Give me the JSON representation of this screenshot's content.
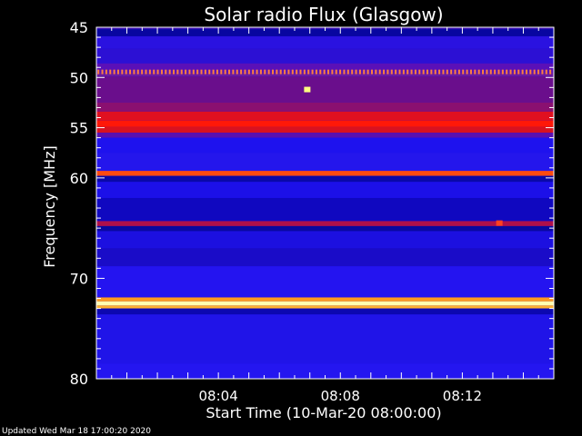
{
  "chart_data": {
    "type": "heatmap",
    "title": "Solar radio Flux (Glasgow)",
    "xlabel": "Start Time (10-Mar-20 08:00:00)",
    "ylabel": "Frequency [MHz]",
    "footer": "Updated Wed Mar 18 17:00:20 2020",
    "x_unit": "minutes after 08:00:00",
    "xlim": [
      0,
      15
    ],
    "ylim": [
      45,
      80
    ],
    "y_reversed": true,
    "x_ticks": [
      {
        "value": 4,
        "label": "08:04"
      },
      {
        "value": 8,
        "label": "08:08"
      },
      {
        "value": 12,
        "label": "08:12"
      }
    ],
    "x_minor_step": 0.5,
    "y_ticks": [
      {
        "value": 45,
        "label": "45"
      },
      {
        "value": 50,
        "label": "50"
      },
      {
        "value": 55,
        "label": "55"
      },
      {
        "value": 60,
        "label": "60"
      },
      {
        "value": 70,
        "label": "70"
      },
      {
        "value": 80,
        "label": "80"
      }
    ],
    "y_minor_step": 1,
    "background_color": "#1c10e8",
    "bands": [
      {
        "f_start": 45,
        "f_end": 45.2,
        "color": "#3a10b0"
      },
      {
        "f_start": 45.2,
        "f_end": 45.9,
        "color": "#0806a0"
      },
      {
        "f_start": 45.9,
        "f_end": 47.1,
        "color": "#2a12e0"
      },
      {
        "f_start": 47.1,
        "f_end": 48.6,
        "color": "#2c10d4"
      },
      {
        "f_start": 48.6,
        "f_end": 49.5,
        "color": "#5a10b8"
      },
      {
        "f_start": 49.5,
        "f_end": 49.9,
        "color": "#6a1aa0"
      },
      {
        "f_start": 49.9,
        "f_end": 52.5,
        "color": "#6a0e8c"
      },
      {
        "f_start": 52.5,
        "f_end": 53.4,
        "color": "#8a1070"
      },
      {
        "f_start": 53.4,
        "f_end": 54.3,
        "color": "#e01020"
      },
      {
        "f_start": 54.3,
        "f_end": 54.9,
        "color": "#ff1808"
      },
      {
        "f_start": 54.9,
        "f_end": 55.5,
        "color": "#d81220"
      },
      {
        "f_start": 55.5,
        "f_end": 56.0,
        "color": "#5a10b0"
      },
      {
        "f_start": 56.0,
        "f_end": 57.5,
        "color": "#1e12ee"
      },
      {
        "f_start": 57.5,
        "f_end": 59.3,
        "color": "#2416ec"
      },
      {
        "f_start": 59.3,
        "f_end": 59.8,
        "color": "#ff4a10"
      },
      {
        "f_start": 59.8,
        "f_end": 60.4,
        "color": "#0a08a8"
      },
      {
        "f_start": 60.4,
        "f_end": 62.0,
        "color": "#1c10e8"
      },
      {
        "f_start": 62.0,
        "f_end": 64.3,
        "color": "#1008c0"
      },
      {
        "f_start": 64.3,
        "f_end": 64.8,
        "color": "#b0104a"
      },
      {
        "f_start": 64.8,
        "f_end": 65.3,
        "color": "#0a08a0"
      },
      {
        "f_start": 65.3,
        "f_end": 67.0,
        "color": "#1c10e0"
      },
      {
        "f_start": 67.0,
        "f_end": 68.8,
        "color": "#1a0cc8"
      },
      {
        "f_start": 68.8,
        "f_end": 71.9,
        "color": "#2414f0"
      },
      {
        "f_start": 71.9,
        "f_end": 72.3,
        "color": "#ff9a20"
      },
      {
        "f_start": 72.3,
        "f_end": 72.7,
        "color": "#ffffb0"
      },
      {
        "f_start": 72.7,
        "f_end": 73.0,
        "color": "#ffb030"
      },
      {
        "f_start": 73.0,
        "f_end": 73.6,
        "color": "#0c08b0"
      },
      {
        "f_start": 73.6,
        "f_end": 78.5,
        "color": "#2014e8"
      },
      {
        "f_start": 78.5,
        "f_end": 80,
        "color": "#2416f0"
      }
    ],
    "features": [
      {
        "kind": "dotted_line",
        "frequency": 49.4,
        "color": "#ff8040",
        "x_step": 0.13
      },
      {
        "kind": "spot",
        "time": 6.9,
        "frequency": 51.2,
        "color": "#ffff80"
      },
      {
        "kind": "spot",
        "time": 13.2,
        "frequency": 64.5,
        "color": "#ff4020"
      }
    ]
  }
}
